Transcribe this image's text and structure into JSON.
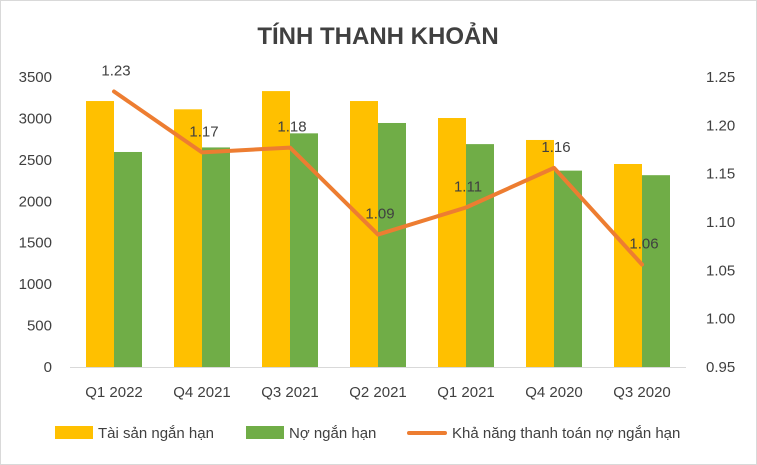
{
  "chart_data": {
    "type": "bar",
    "title": "TÍNH THANH KHOẢN",
    "categories": [
      "Q1 2022",
      "Q4 2021",
      "Q3 2021",
      "Q2 2021",
      "Q1 2021",
      "Q4 2020",
      "Q3 2020"
    ],
    "series": [
      {
        "name": "Tài sản ngắn hạn",
        "type": "bar",
        "axis": "left",
        "color": "#FFC000",
        "values": [
          3210,
          3110,
          3330,
          3210,
          3005,
          2740,
          2450
        ]
      },
      {
        "name": "Nợ ngắn hạn",
        "type": "bar",
        "axis": "left",
        "color": "#70AD47",
        "values": [
          2595,
          2650,
          2820,
          2945,
          2690,
          2370,
          2315
        ]
      },
      {
        "name": "Khả năng thanh toán nợ ngắn hạn",
        "type": "line",
        "axis": "right",
        "color": "#ED7D31",
        "values": [
          1.235,
          1.172,
          1.177,
          1.087,
          1.115,
          1.156,
          1.056
        ],
        "labels": [
          "1.23",
          "1.17",
          "1.18",
          "1.09",
          "1.11",
          "1.16",
          "1.06"
        ]
      }
    ],
    "y_left": {
      "min": 0,
      "max": 3500,
      "ticks": [
        "0",
        "500",
        "1000",
        "1500",
        "2000",
        "2500",
        "3000",
        "3500"
      ]
    },
    "y_right": {
      "min": 0.95,
      "max": 1.25,
      "ticks": [
        "0.95",
        "1.00",
        "1.05",
        "1.10",
        "1.15",
        "1.20",
        "1.25"
      ]
    },
    "grid": false,
    "legend": "bottom"
  }
}
